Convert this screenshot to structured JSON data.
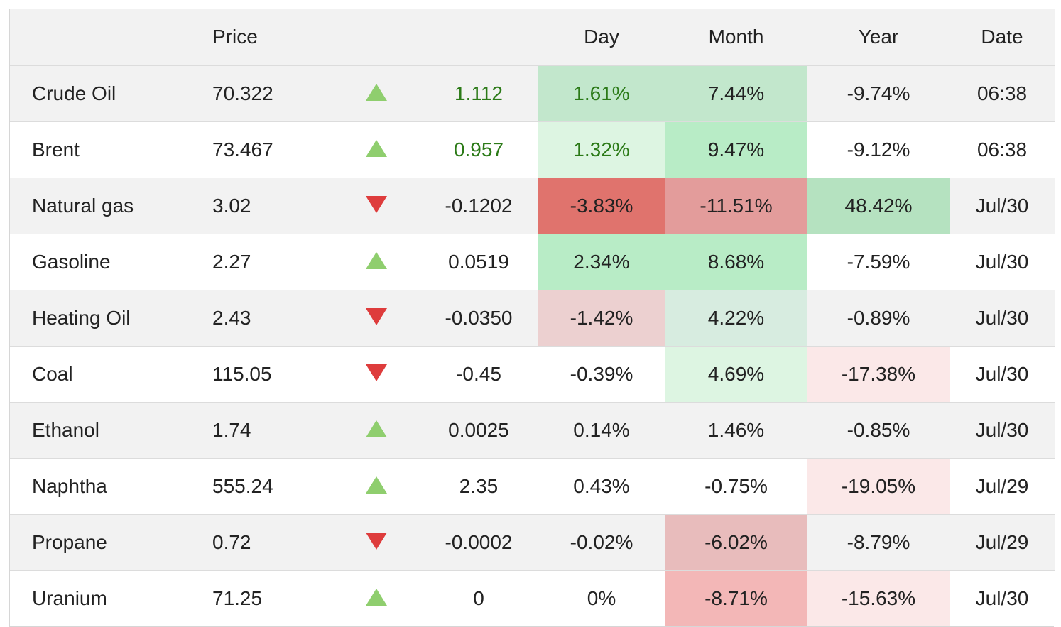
{
  "headers": {
    "name": "",
    "price": "Price",
    "arrow": "",
    "change": "",
    "day": "Day",
    "month": "Month",
    "year": "Year",
    "date": "Date"
  },
  "colors": {
    "green_strong": "#bde6c3",
    "green_medium": "#c2e7cc",
    "green_light": "#ddf5e2",
    "green_faint": "#d7ece0",
    "green_bright": "#b8ecc6",
    "green_year": "#b5e2c0",
    "red_strong": "#e0736d",
    "red_medium": "#e39c9b",
    "red_light": "#ecd0d0",
    "red_soft": "#e8bcbc",
    "red_pink": "#f3b7b7",
    "red_faint": "#fbe8e8"
  },
  "rows": [
    {
      "name": "Crude Oil",
      "price": "70.322",
      "direction": "up",
      "change": "1.112",
      "change_positive_color": true,
      "day": "1.61%",
      "day_positive_color": true,
      "day_bg": "#c2e7cc",
      "month": "7.44%",
      "month_bg": "#c2e7cc",
      "year": "-9.74%",
      "year_bg": "",
      "date": "06:38"
    },
    {
      "name": "Brent",
      "price": "73.467",
      "direction": "up",
      "change": "0.957",
      "change_positive_color": true,
      "day": "1.32%",
      "day_positive_color": true,
      "day_bg": "#ddf5e2",
      "month": "9.47%",
      "month_bg": "#b8ecc6",
      "year": "-9.12%",
      "year_bg": "",
      "date": "06:38"
    },
    {
      "name": "Natural gas",
      "price": "3.02",
      "direction": "down",
      "change": "-0.1202",
      "change_positive_color": false,
      "day": "-3.83%",
      "day_positive_color": false,
      "day_bg": "#e0736d",
      "month": "-11.51%",
      "month_bg": "#e39c9b",
      "year": "48.42%",
      "year_bg": "#b5e2c0",
      "date": "Jul/30"
    },
    {
      "name": "Gasoline",
      "price": "2.27",
      "direction": "up",
      "change": "0.0519",
      "change_positive_color": false,
      "day": "2.34%",
      "day_positive_color": false,
      "day_bg": "#b8ecc6",
      "month": "8.68%",
      "month_bg": "#b8ecc6",
      "year": "-7.59%",
      "year_bg": "",
      "date": "Jul/30"
    },
    {
      "name": "Heating Oil",
      "price": "2.43",
      "direction": "down",
      "change": "-0.0350",
      "change_positive_color": false,
      "day": "-1.42%",
      "day_positive_color": false,
      "day_bg": "#ecd0d0",
      "month": "4.22%",
      "month_bg": "#d7ece0",
      "year": "-0.89%",
      "year_bg": "",
      "date": "Jul/30"
    },
    {
      "name": "Coal",
      "price": "115.05",
      "direction": "down",
      "change": "-0.45",
      "change_positive_color": false,
      "day": "-0.39%",
      "day_positive_color": false,
      "day_bg": "",
      "month": "4.69%",
      "month_bg": "#ddf5e2",
      "year": "-17.38%",
      "year_bg": "#fbe8e8",
      "date": "Jul/30"
    },
    {
      "name": "Ethanol",
      "price": "1.74",
      "direction": "up",
      "change": "0.0025",
      "change_positive_color": false,
      "day": "0.14%",
      "day_positive_color": false,
      "day_bg": "",
      "month": "1.46%",
      "month_bg": "",
      "year": "-0.85%",
      "year_bg": "",
      "date": "Jul/30"
    },
    {
      "name": "Naphtha",
      "price": "555.24",
      "direction": "up",
      "change": "2.35",
      "change_positive_color": false,
      "day": "0.43%",
      "day_positive_color": false,
      "day_bg": "",
      "month": "-0.75%",
      "month_bg": "",
      "year": "-19.05%",
      "year_bg": "#fbe8e8",
      "date": "Jul/29"
    },
    {
      "name": "Propane",
      "price": "0.72",
      "direction": "down",
      "change": "-0.0002",
      "change_positive_color": false,
      "day": "-0.02%",
      "day_positive_color": false,
      "day_bg": "",
      "month": "-6.02%",
      "month_bg": "#e8bcbc",
      "year": "-8.79%",
      "year_bg": "",
      "date": "Jul/29"
    },
    {
      "name": "Uranium",
      "price": "71.25",
      "direction": "up",
      "change": "0",
      "change_positive_color": false,
      "day": "0%",
      "day_positive_color": false,
      "day_bg": "",
      "month": "-8.71%",
      "month_bg": "#f3b7b7",
      "year": "-15.63%",
      "year_bg": "#fbe8e8",
      "date": "Jul/30"
    }
  ]
}
